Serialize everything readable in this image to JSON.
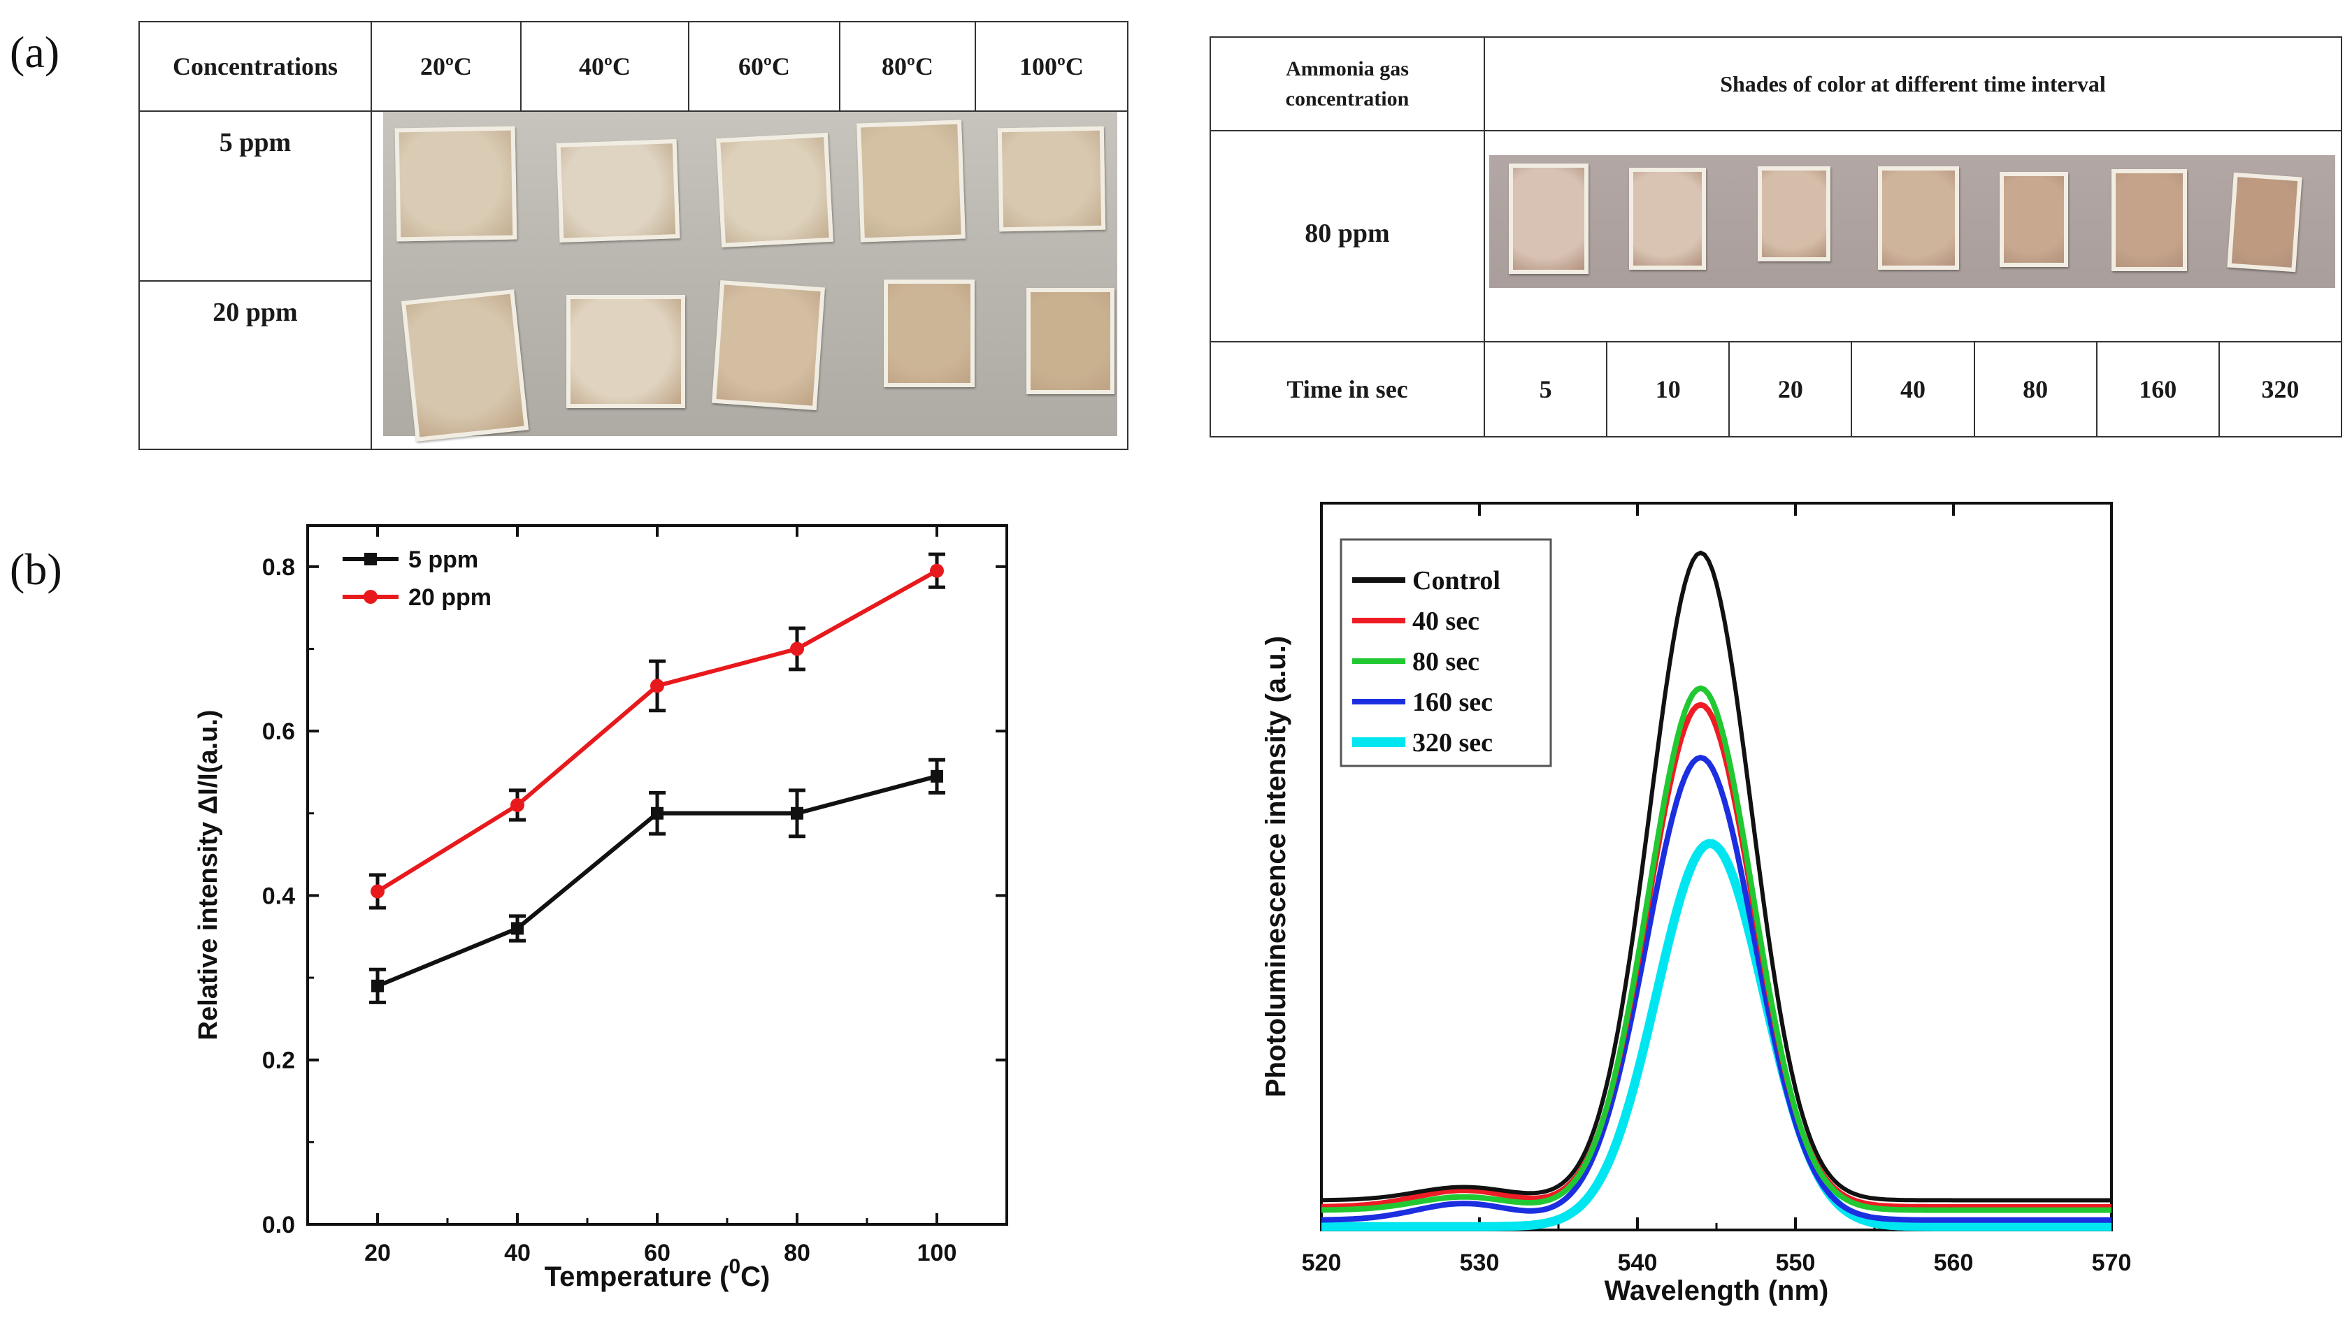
{
  "panel_labels": {
    "a": "(a)",
    "b": "(b)"
  },
  "table_temp": {
    "header": [
      "Concentrations",
      "20ºC",
      "40ºC",
      "60ºC",
      "80ºC",
      "100ºC"
    ],
    "rows": [
      "5 ppm",
      "20 ppm"
    ],
    "swatch_colors": {
      "row1": [
        "#d9cbb4",
        "#dfd4c2",
        "#ddd1bb",
        "#d4c1a4",
        "#d8c8b0"
      ],
      "row2": [
        "#d6c6ad",
        "#e0d4c0",
        "#d3bea2",
        "#ccb596",
        "#c9b190"
      ]
    }
  },
  "table_time": {
    "header_left": [
      "Ammonia gas",
      "concentration"
    ],
    "header_right": "Shades of color at different time interval",
    "row_label": "80 ppm",
    "time_label": "Time in sec",
    "times": [
      "5",
      "10",
      "20",
      "40",
      "80",
      "160",
      "320"
    ],
    "swatch_colors": [
      "#d8c2b4",
      "#d9c4b3",
      "#d5bea9",
      "#cfb49c",
      "#c8a88f",
      "#c4a38a",
      "#bd9a80"
    ]
  },
  "chart_data": [
    {
      "type": "line",
      "title": "",
      "xlabel": "Temperature (",
      "xlabel_sup": "0",
      "xlabel_unit": "C)",
      "ylabel": "Relative intensity ΔI/I(a.u.)",
      "x": [
        20,
        40,
        60,
        80,
        100
      ],
      "xlim": [
        10,
        110
      ],
      "ylim": [
        0.0,
        0.85
      ],
      "xticks": [
        "20",
        "40",
        "60",
        "80",
        "100"
      ],
      "yticks": [
        "0.0",
        "0.2",
        "0.4",
        "0.6",
        "0.8"
      ],
      "ytick_values": [
        0.0,
        0.2,
        0.4,
        0.6,
        0.8
      ],
      "legend_position": "top-left",
      "series": [
        {
          "name": "5 ppm",
          "color": "#111111",
          "marker": "square",
          "values": [
            0.29,
            0.36,
            0.5,
            0.5,
            0.545
          ],
          "errors": [
            0.02,
            0.015,
            0.025,
            0.028,
            0.02
          ]
        },
        {
          "name": "20 ppm",
          "color": "#e8191c",
          "marker": "circle",
          "values": [
            0.405,
            0.51,
            0.655,
            0.7,
            0.795
          ],
          "errors": [
            0.02,
            0.018,
            0.03,
            0.025,
            0.02
          ]
        }
      ]
    },
    {
      "type": "line",
      "title": "",
      "xlabel": "Wavelength (nm)",
      "ylabel": "Photoluminescence intensity (a.u.)",
      "xlim": [
        520,
        570
      ],
      "ylim": [
        0,
        1.1
      ],
      "xticks": [
        "520",
        "530",
        "540",
        "550",
        "560",
        "570"
      ],
      "xtick_values": [
        520,
        530,
        540,
        550,
        560,
        570
      ],
      "legend_position": "top-left",
      "series": [
        {
          "name": "Control",
          "color": "#111111",
          "peak": 544,
          "amplitude": 0.98,
          "width": 3.2,
          "baseline": 0.045,
          "bump": 0.02
        },
        {
          "name": "40 sec",
          "color": "#ee1c24",
          "peak": 544,
          "amplitude": 0.76,
          "width": 3.3,
          "baseline": 0.035,
          "bump": 0.025
        },
        {
          "name": "80 sec",
          "color": "#22c832",
          "peak": 544,
          "amplitude": 0.79,
          "width": 3.3,
          "baseline": 0.03,
          "bump": 0.02
        },
        {
          "name": "160 sec",
          "color": "#1c2fe0",
          "peak": 544,
          "amplitude": 0.7,
          "width": 3.4,
          "baseline": 0.015,
          "bump": 0.025
        },
        {
          "name": "320 sec",
          "color": "#00e6f0",
          "peak": 544.6,
          "amplitude": 0.58,
          "width": 3.4,
          "baseline": 0.005,
          "bump": 0.0
        }
      ]
    }
  ]
}
